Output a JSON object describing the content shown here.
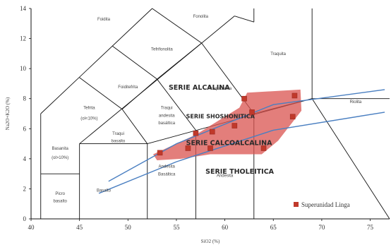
{
  "chart_data": {
    "type": "scatter",
    "title": "",
    "xlabel": "SiO2 (%)",
    "ylabel": "Na2O+K2O (%)",
    "xlim": [
      40,
      77
    ],
    "ylim": [
      0,
      14
    ],
    "x_ticks": [
      "40",
      "45",
      "50",
      "55",
      "60",
      "65",
      "70",
      "75"
    ],
    "y_ticks": [
      "0",
      "2",
      "4",
      "6",
      "8",
      "10",
      "12",
      "14"
    ],
    "grid": false,
    "legend_position": "bottom-right",
    "colors": {
      "points": "#c0392b",
      "field_area": "#d9534f",
      "boundary_lines": "#4a7fc1",
      "field_lines": "#111111"
    },
    "fields": [
      {
        "name": "Foidita",
        "x": 47.5,
        "y": 13.2
      },
      {
        "name": "Fonolita",
        "x": 57.5,
        "y": 13.4
      },
      {
        "name": "Tefrifonolita",
        "x": 53.5,
        "y": 11.2
      },
      {
        "name": "Foiditefrita",
        "x": 50.0,
        "y": 8.7
      },
      {
        "name": "Traquita",
        "x": 65.5,
        "y": 10.9
      },
      {
        "name": "Traquidacita",
        "x": 59.5,
        "y": 8.6
      },
      {
        "name": "Tefrita",
        "x": 46.0,
        "y": 7.3
      },
      {
        "name": "(ol<10%)",
        "x": 46.0,
        "y": 6.6
      },
      {
        "name": "Traqui",
        "x": 54.0,
        "y": 7.3
      },
      {
        "name": "andesita",
        "x": 54.0,
        "y": 6.8
      },
      {
        "name": "basáltica",
        "x": 54.0,
        "y": 6.3
      },
      {
        "name": "Traqui",
        "x": 49.0,
        "y": 5.6
      },
      {
        "name": "basalto",
        "x": 49.0,
        "y": 5.1
      },
      {
        "name": "Basanita",
        "x": 43.0,
        "y": 4.6
      },
      {
        "name": "(ol>10%)",
        "x": 43.0,
        "y": 4.0
      },
      {
        "name": "Riolita",
        "x": 73.5,
        "y": 7.7
      },
      {
        "name": "Andesita",
        "x": 54.0,
        "y": 3.4
      },
      {
        "name": "Basáltica",
        "x": 54.0,
        "y": 2.9
      },
      {
        "name": "Andesita",
        "x": 60.0,
        "y": 2.8
      },
      {
        "name": "Basalto",
        "x": 47.5,
        "y": 1.8
      },
      {
        "name": "Picro",
        "x": 43.0,
        "y": 1.6
      },
      {
        "name": "basalto",
        "x": 43.0,
        "y": 1.1
      }
    ],
    "series_labels": [
      {
        "name": "SERIE ALCALINA",
        "x": 54.2,
        "y": 8.6
      },
      {
        "name": "SERIE SHOSHONITICA",
        "x": 56.0,
        "y": 6.7
      },
      {
        "name": "SERIE CALCOALCALINA",
        "x": 56.0,
        "y": 4.9
      },
      {
        "name": "SERIE THOLEITICA",
        "x": 58.0,
        "y": 3.0
      }
    ],
    "series": [
      {
        "name": "Superunidad Linga",
        "points": [
          {
            "x": 53.3,
            "y": 4.4
          },
          {
            "x": 56.2,
            "y": 4.7
          },
          {
            "x": 57.0,
            "y": 5.7
          },
          {
            "x": 58.5,
            "y": 4.7
          },
          {
            "x": 58.7,
            "y": 5.8
          },
          {
            "x": 61.0,
            "y": 6.2
          },
          {
            "x": 62.0,
            "y": 8.0
          },
          {
            "x": 62.8,
            "y": 7.1
          },
          {
            "x": 64.0,
            "y": 4.7
          },
          {
            "x": 67.0,
            "y": 6.8
          },
          {
            "x": 67.2,
            "y": 8.2
          }
        ]
      }
    ]
  }
}
